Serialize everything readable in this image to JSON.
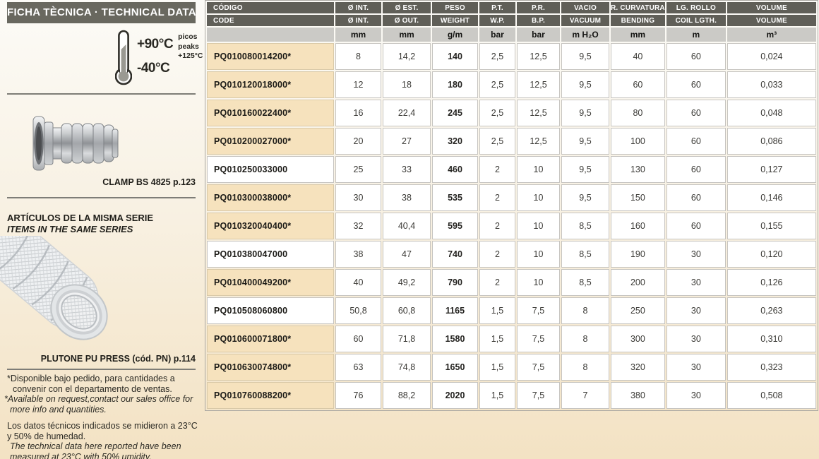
{
  "sidebar": {
    "title": "FICHA TÈCNICA · TECHNICAL DATA",
    "temperature": {
      "max": "+90°C",
      "min": "-40°C",
      "peaks_label_es": "picos",
      "peaks_label_en": "peaks",
      "peaks_value": "+125°C"
    },
    "clamp_caption": "CLAMP BS 4825 p.123",
    "series_heading_es": "ARTÍCULOS DE LA MISMA SERIE",
    "series_heading_en": "ITEMS IN THE SAME SERIES",
    "hose_caption": "PLUTONE PU PRESS (cód. PN) p.114",
    "footnotes": [
      {
        "es": "*Disponible bajo pedido, para cantidades a convenir con el departamento de ventas.",
        "en": "*Available on request,contact our sales office for more info and quantities."
      },
      {
        "es": "Los datos técnicos indicados se midieron a 23°C y 50% de humedad.",
        "en": "The technical data here reported have been measured at 23°C with 50% umidity."
      }
    ]
  },
  "table": {
    "columns": [
      {
        "es": "CÓDIGO",
        "en": "CODE",
        "unit": ""
      },
      {
        "es": "Ø INT.",
        "en": "Ø INT.",
        "unit": "mm"
      },
      {
        "es": "Ø EST.",
        "en": "Ø OUT.",
        "unit": "mm"
      },
      {
        "es": "PESO",
        "en": "WEIGHT",
        "unit": "g/m"
      },
      {
        "es": "P.T.",
        "en": "W.P.",
        "unit": "bar"
      },
      {
        "es": "P.R.",
        "en": "B.P.",
        "unit": "bar"
      },
      {
        "es": "VACIO",
        "en": "VACUUM",
        "unit": "m H₂O"
      },
      {
        "es": "R. CURVATURA",
        "en": "BENDING",
        "unit": "mm"
      },
      {
        "es": "LG. ROLLO",
        "en": "COIL LGTH.",
        "unit": "m"
      },
      {
        "es": "VOLUME",
        "en": "VOLUME",
        "unit": "m³"
      }
    ],
    "rows": [
      [
        "PQ010080014200*",
        "8",
        "14,2",
        "140",
        "2,5",
        "12,5",
        "9,5",
        "40",
        "60",
        "0,024"
      ],
      [
        "PQ010120018000*",
        "12",
        "18",
        "180",
        "2,5",
        "12,5",
        "9,5",
        "60",
        "60",
        "0,033"
      ],
      [
        "PQ010160022400*",
        "16",
        "22,4",
        "245",
        "2,5",
        "12,5",
        "9,5",
        "80",
        "60",
        "0,048"
      ],
      [
        "PQ010200027000*",
        "20",
        "27",
        "320",
        "2,5",
        "12,5",
        "9,5",
        "100",
        "60",
        "0,086"
      ],
      [
        "PQ010250033000",
        "25",
        "33",
        "460",
        "2",
        "10",
        "9,5",
        "130",
        "60",
        "0,127"
      ],
      [
        "PQ010300038000*",
        "30",
        "38",
        "535",
        "2",
        "10",
        "9,5",
        "150",
        "60",
        "0,146"
      ],
      [
        "PQ010320040400*",
        "32",
        "40,4",
        "595",
        "2",
        "10",
        "8,5",
        "160",
        "60",
        "0,155"
      ],
      [
        "PQ010380047000",
        "38",
        "47",
        "740",
        "2",
        "10",
        "8,5",
        "190",
        "30",
        "0,120"
      ],
      [
        "PQ010400049200*",
        "40",
        "49,2",
        "790",
        "2",
        "10",
        "8,5",
        "200",
        "30",
        "0,126"
      ],
      [
        "PQ010508060800",
        "50,8",
        "60,8",
        "1165",
        "1,5",
        "7,5",
        "8",
        "250",
        "30",
        "0,263"
      ],
      [
        "PQ010600071800*",
        "60",
        "71,8",
        "1580",
        "1,5",
        "7,5",
        "8",
        "300",
        "30",
        "0,310"
      ],
      [
        "PQ010630074800*",
        "63",
        "74,8",
        "1650",
        "1,5",
        "7,5",
        "8",
        "320",
        "30",
        "0,323"
      ],
      [
        "PQ010760088200*",
        "76",
        "88,2",
        "2020",
        "1,5",
        "7,5",
        "7",
        "380",
        "30",
        "0,508"
      ]
    ]
  },
  "colors": {
    "header_bg": "#605f58",
    "title_bg": "#69685f",
    "units_row_bg": "#cbcac6",
    "highlight_cell_bg": "#f6e2bd",
    "page_bg_top": "#fcfbf7",
    "page_bg_bottom": "#f3e2c3"
  }
}
